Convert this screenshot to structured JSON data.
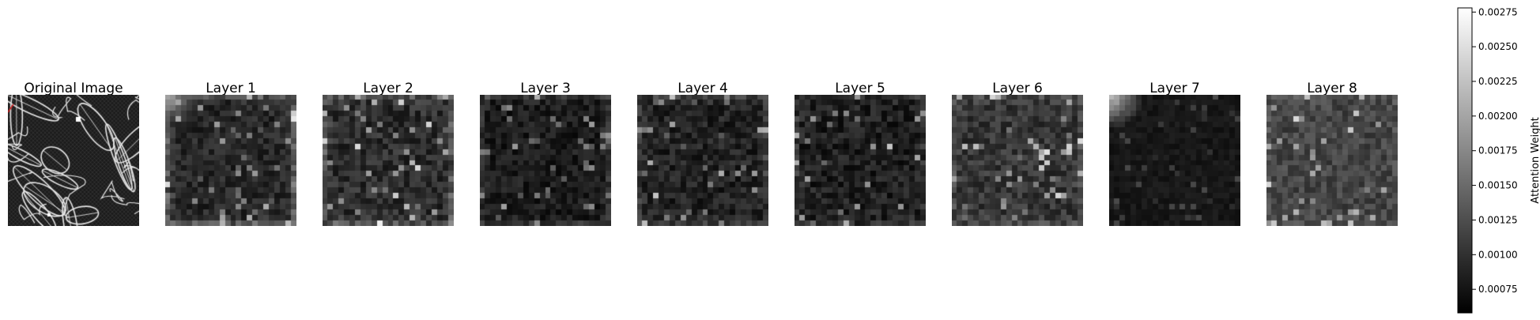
{
  "chart_data": {
    "type": "heatmap",
    "panels": [
      {
        "id": "original",
        "title": "Original Image",
        "kind": "image"
      },
      {
        "id": "layer1",
        "title": "Layer 1",
        "kind": "attention",
        "seed": 11,
        "mean": 0.00092,
        "spread": 0.00028,
        "corner": [
          0.00205,
          0,
          0,
          0
        ],
        "edge": 0.00045
      },
      {
        "id": "layer2",
        "title": "Layer 2",
        "kind": "attention",
        "seed": 23,
        "mean": 0.00098,
        "spread": 0.00034,
        "corner": [
          0,
          0,
          0,
          0
        ],
        "edge": 0.00035
      },
      {
        "id": "layer3",
        "title": "Layer 3",
        "kind": "attention",
        "seed": 37,
        "mean": 0.00082,
        "spread": 0.00026,
        "corner": [
          0,
          0,
          0,
          0
        ],
        "edge": 0.0002
      },
      {
        "id": "layer4",
        "title": "Layer 4",
        "kind": "attention",
        "seed": 41,
        "mean": 0.00088,
        "spread": 0.0003,
        "corner": [
          0,
          0,
          0,
          0
        ],
        "edge": 0.0002
      },
      {
        "id": "layer5",
        "title": "Layer 5",
        "kind": "attention",
        "seed": 53,
        "mean": 0.00086,
        "spread": 0.00032,
        "corner": [
          0,
          0,
          0,
          0
        ],
        "edge": 0.00015
      },
      {
        "id": "layer6",
        "title": "Layer 6",
        "kind": "attention",
        "seed": 67,
        "mean": 0.00105,
        "spread": 0.00032,
        "corner": [
          0,
          0,
          0,
          0
        ],
        "edge": 0.0002
      },
      {
        "id": "layer7",
        "title": "Layer 7",
        "kind": "attention",
        "seed": 71,
        "mean": 0.00078,
        "spread": 0.00012,
        "corner": [
          0.0022,
          0,
          0,
          0
        ],
        "edge": 0.0
      },
      {
        "id": "layer8",
        "title": "Layer 8",
        "kind": "attention",
        "seed": 89,
        "mean": 0.00118,
        "spread": 0.0003,
        "corner": [
          0,
          0,
          0,
          0
        ],
        "edge": 0.0001
      }
    ],
    "grid_size": 24,
    "colormap": "gray",
    "colorbar": {
      "label": "Attention Weight",
      "vmin": 0.00058,
      "vmax": 0.00278,
      "ticks": [
        "0.00075",
        "0.00100",
        "0.00125",
        "0.00150",
        "0.00175",
        "0.00200",
        "0.00225",
        "0.00250",
        "0.00275"
      ],
      "tick_values": [
        0.00075,
        0.001,
        0.00125,
        0.0015,
        0.00175,
        0.002,
        0.00225,
        0.0025,
        0.00275
      ]
    }
  }
}
